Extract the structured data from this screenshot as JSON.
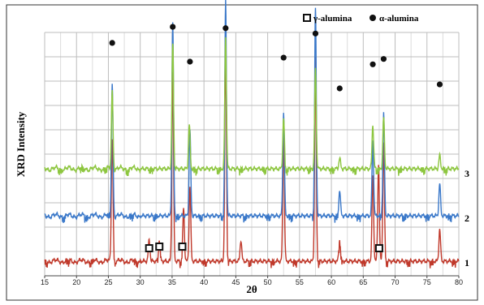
{
  "chart_data": {
    "type": "line",
    "xlabel": "2θ",
    "ylabel": "XRD Intensity",
    "xlim": [
      15,
      80
    ],
    "xticks": [
      "15",
      "20",
      "25",
      "30",
      "35",
      "40",
      "45",
      "50",
      "55",
      "60",
      "65",
      "70",
      "75",
      "80"
    ],
    "grid": true,
    "legend_position": "top-right",
    "legend": [
      {
        "marker": "open-square",
        "label": "γ-alumina"
      },
      {
        "marker": "filled-circle",
        "label": "α-alumina"
      }
    ],
    "series": [
      {
        "name": "1",
        "color": "#c0392b",
        "baseline": 0,
        "peaks": [
          {
            "x": 25.6,
            "h": 0.6
          },
          {
            "x": 31.4,
            "h": 0.1
          },
          {
            "x": 33.0,
            "h": 0.1
          },
          {
            "x": 35.1,
            "h": 0.88
          },
          {
            "x": 36.8,
            "h": 0.25
          },
          {
            "x": 37.8,
            "h": 0.35
          },
          {
            "x": 43.4,
            "h": 1.0
          },
          {
            "x": 45.8,
            "h": 0.1
          },
          {
            "x": 52.5,
            "h": 0.58
          },
          {
            "x": 57.5,
            "h": 0.95
          },
          {
            "x": 61.3,
            "h": 0.1
          },
          {
            "x": 66.5,
            "h": 0.4
          },
          {
            "x": 67.4,
            "h": 0.45
          },
          {
            "x": 68.2,
            "h": 0.55
          },
          {
            "x": 77.0,
            "h": 0.15
          }
        ]
      },
      {
        "name": "2",
        "color": "#3a78c9",
        "baseline": 1,
        "peaks": [
          {
            "x": 25.6,
            "h": 0.62
          },
          {
            "x": 35.1,
            "h": 0.9
          },
          {
            "x": 37.8,
            "h": 0.4
          },
          {
            "x": 43.4,
            "h": 1.0
          },
          {
            "x": 52.5,
            "h": 0.48
          },
          {
            "x": 57.5,
            "h": 0.98
          },
          {
            "x": 61.3,
            "h": 0.12
          },
          {
            "x": 66.5,
            "h": 0.35
          },
          {
            "x": 68.2,
            "h": 0.48
          },
          {
            "x": 77.0,
            "h": 0.15
          }
        ]
      },
      {
        "name": "3",
        "color": "#8dc63f",
        "baseline": 2,
        "peaks": [
          {
            "x": 25.6,
            "h": 0.58
          },
          {
            "x": 35.1,
            "h": 0.96
          },
          {
            "x": 37.7,
            "h": 0.33
          },
          {
            "x": 43.4,
            "h": 0.98
          },
          {
            "x": 52.5,
            "h": 0.38
          },
          {
            "x": 57.5,
            "h": 0.75
          },
          {
            "x": 61.3,
            "h": 0.08
          },
          {
            "x": 66.5,
            "h": 0.33
          },
          {
            "x": 68.2,
            "h": 0.38
          },
          {
            "x": 77.0,
            "h": 0.1
          }
        ]
      }
    ],
    "annotations": {
      "alpha_markers": [
        {
          "x": 25.6,
          "level": 0.94
        },
        {
          "x": 35.1,
          "level": 1.06
        },
        {
          "x": 37.8,
          "level": 0.8
        },
        {
          "x": 43.4,
          "level": 1.05
        },
        {
          "x": 52.5,
          "level": 0.83
        },
        {
          "x": 57.5,
          "level": 1.01
        },
        {
          "x": 61.3,
          "level": 0.6
        },
        {
          "x": 66.5,
          "level": 0.78
        },
        {
          "x": 68.2,
          "level": 0.82
        },
        {
          "x": 77.0,
          "level": 0.63
        }
      ],
      "gamma_markers": [
        {
          "x": 31.4,
          "level": 0.1
        },
        {
          "x": 33.0,
          "level": 0.12
        },
        {
          "x": 36.6,
          "level": 0.12
        },
        {
          "x": 67.5,
          "level": 0.1
        }
      ]
    }
  }
}
